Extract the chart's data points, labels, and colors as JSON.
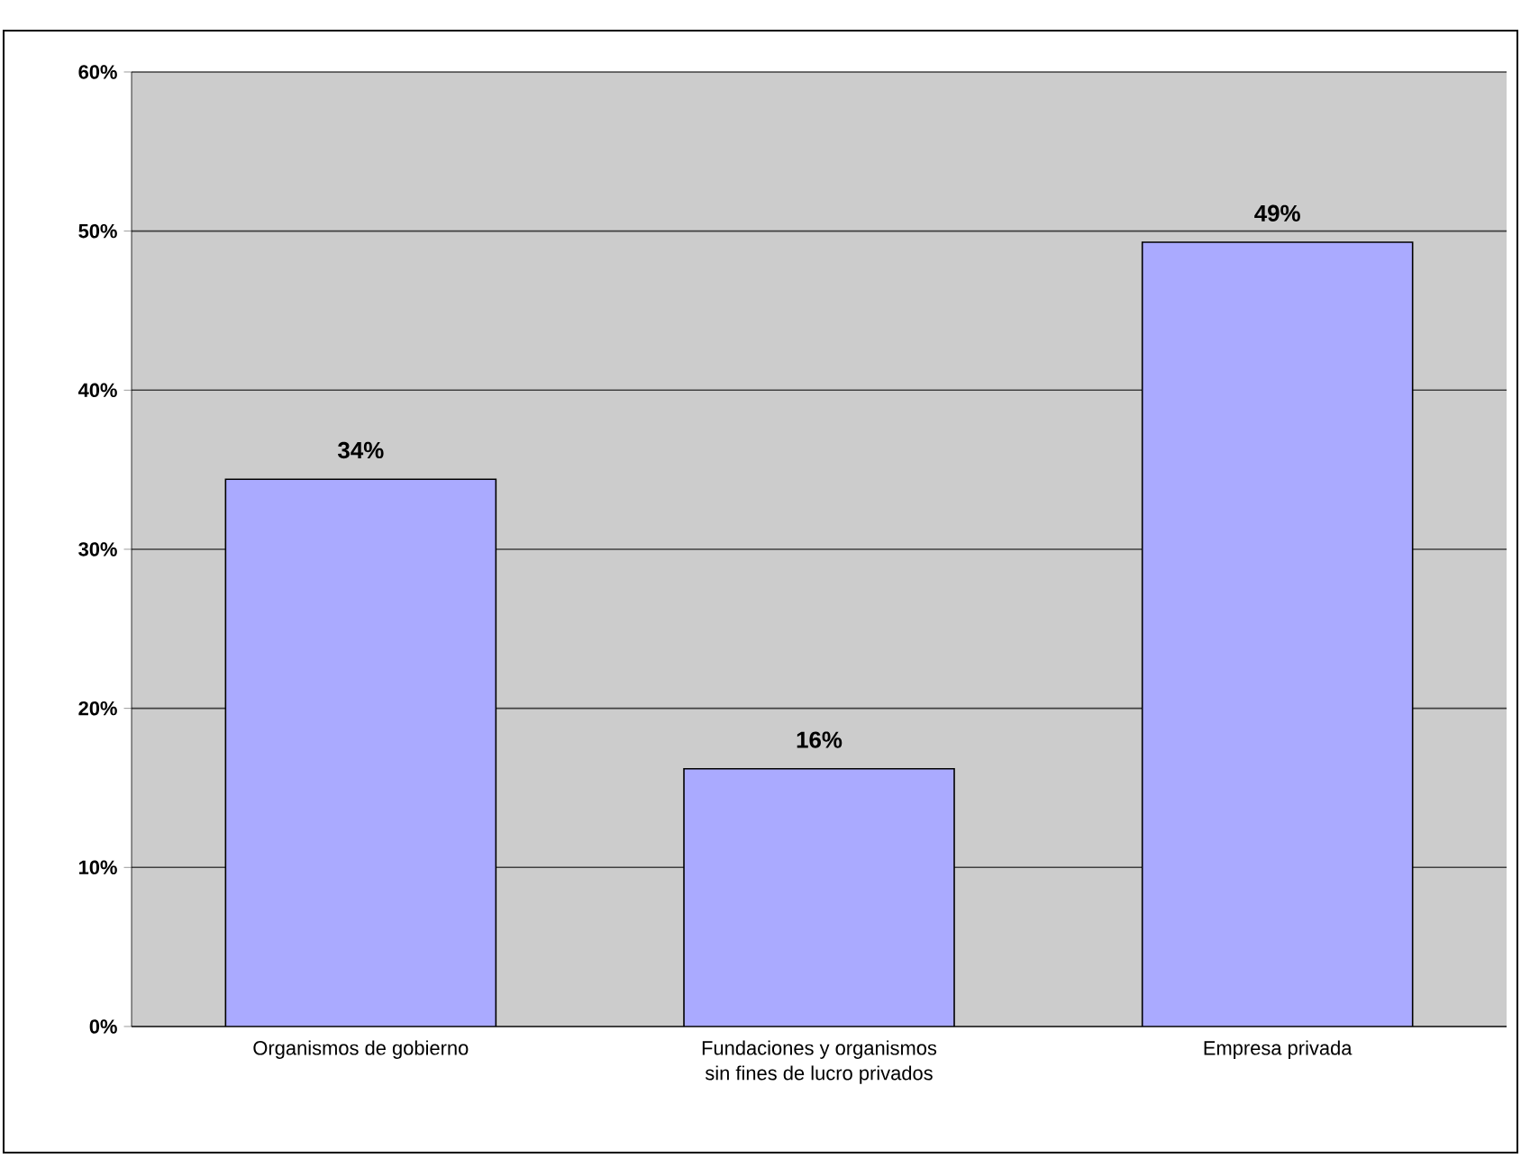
{
  "chart_data": {
    "type": "bar",
    "categories": [
      "Organismos de gobierno",
      "Fundaciones y organismos\nsin fines de lucro privados",
      "Empresa privada"
    ],
    "values": [
      34.4,
      16.2,
      49.3
    ],
    "value_labels": [
      "34%",
      "16%",
      "49%"
    ],
    "color": "#aaaaff",
    "ylim": [
      0,
      60
    ],
    "yticks": [
      {
        "value": 0,
        "label": "0%"
      },
      {
        "value": 10,
        "label": "10%"
      },
      {
        "value": 20,
        "label": "20%"
      },
      {
        "value": 30,
        "label": "30%"
      },
      {
        "value": 40,
        "label": "40%"
      },
      {
        "value": 50,
        "label": "50%"
      },
      {
        "value": 60,
        "label": "60%"
      }
    ],
    "grid": "y"
  }
}
